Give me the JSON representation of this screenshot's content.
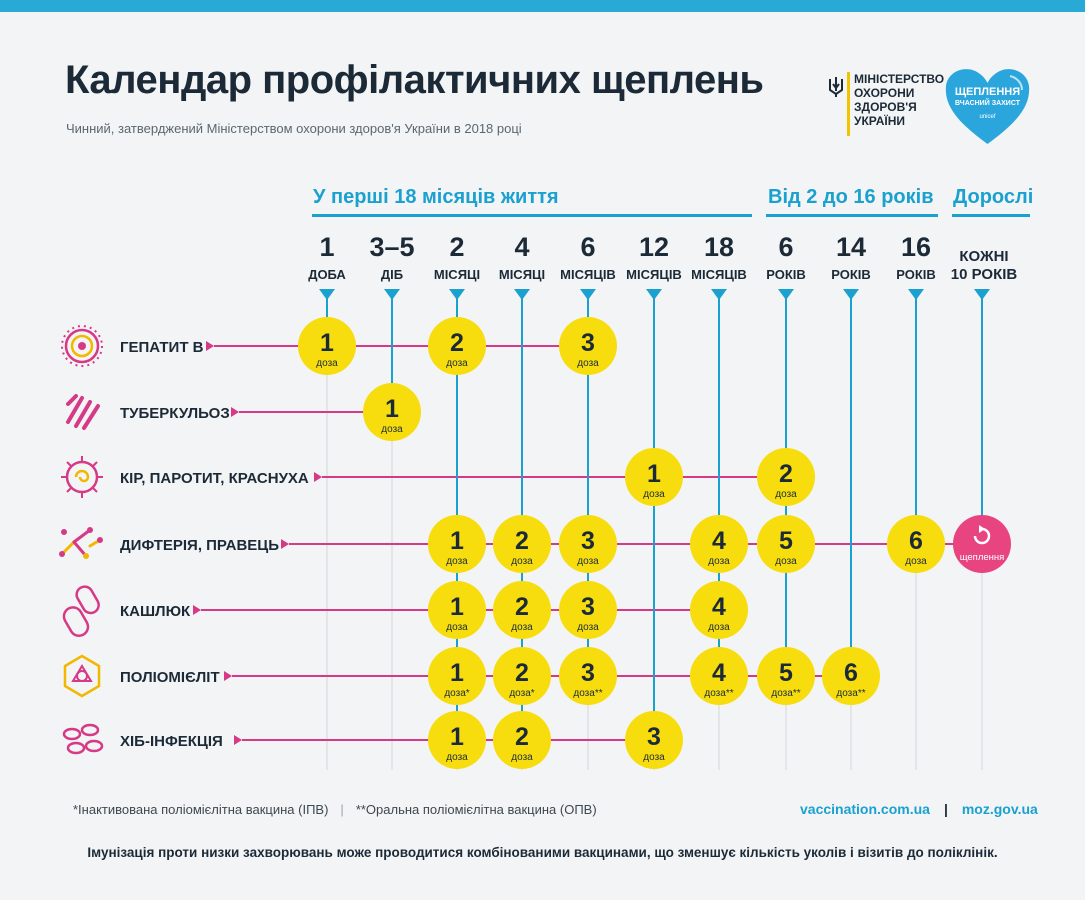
{
  "title": "Календар профілактичних щеплень",
  "subtitle": "Чинний, затверджений Міністерством охорони здоров'я України в 2018 році",
  "ministry": {
    "lines": [
      "МІНІСТЕРСТВО",
      "ОХОРОНИ",
      "ЗДОРОВ'Я",
      "УКРАЇНИ"
    ]
  },
  "campaign": {
    "line1": "ЩЕПЛЕННЯ",
    "line2": "ВЧАСНИЙ ЗАХИСТ",
    "line3": "unicef"
  },
  "groups": [
    {
      "label": "У перші 18 місяців життя"
    },
    {
      "label": "Від 2 до 16 років"
    },
    {
      "label": "Дорослі"
    }
  ],
  "columns": [
    {
      "num": "1",
      "unit": "ДОБА"
    },
    {
      "num": "3–5",
      "unit": "ДІБ"
    },
    {
      "num": "2",
      "unit": "МІСЯЦІ"
    },
    {
      "num": "4",
      "unit": "МІСЯЦІ"
    },
    {
      "num": "6",
      "unit": "МІСЯЦІВ"
    },
    {
      "num": "12",
      "unit": "МІСЯЦІВ"
    },
    {
      "num": "18",
      "unit": "МІСЯЦІВ"
    },
    {
      "num": "6",
      "unit": "РОКІВ"
    },
    {
      "num": "14",
      "unit": "РОКІВ"
    },
    {
      "num": "16",
      "unit": "РОКІВ"
    },
    {
      "num": "",
      "unit": "",
      "line1": "КОЖНІ",
      "line2": "10 РОКІВ"
    }
  ],
  "dose_word": "доза",
  "every_word": "щеплення",
  "colors": {
    "accent": "#1aa1cf",
    "dose": "#f7dd0d",
    "row_line": "#d63a86",
    "every": "#e8447f"
  },
  "rows": [
    {
      "name": "ГЕПАТИТ В",
      "icon": "hepatitis-b-virus-icon",
      "doses": [
        {
          "col": 0,
          "n": "1",
          "mark": ""
        },
        {
          "col": 2,
          "n": "2",
          "mark": ""
        },
        {
          "col": 4,
          "n": "3",
          "mark": ""
        }
      ]
    },
    {
      "name": "ТУБЕРКУЛЬОЗ",
      "icon": "tuberculosis-bacteria-icon",
      "doses": [
        {
          "col": 1,
          "n": "1",
          "mark": ""
        }
      ]
    },
    {
      "name": "КІР, ПАРОТИТ, КРАСНУХА",
      "icon": "measles-virus-icon",
      "doses": [
        {
          "col": 5,
          "n": "1",
          "mark": ""
        },
        {
          "col": 7,
          "n": "2",
          "mark": ""
        }
      ]
    },
    {
      "name": "ДИФТЕРІЯ, ПРАВЕЦЬ",
      "icon": "diphtheria-bacteria-icon",
      "doses": [
        {
          "col": 2,
          "n": "1",
          "mark": ""
        },
        {
          "col": 3,
          "n": "2",
          "mark": ""
        },
        {
          "col": 4,
          "n": "3",
          "mark": ""
        },
        {
          "col": 6,
          "n": "4",
          "mark": ""
        },
        {
          "col": 7,
          "n": "5",
          "mark": ""
        },
        {
          "col": 9,
          "n": "6",
          "mark": ""
        }
      ],
      "every": {
        "col": 10
      }
    },
    {
      "name": "КАШЛЮК",
      "icon": "pertussis-bacteria-icon",
      "doses": [
        {
          "col": 2,
          "n": "1",
          "mark": ""
        },
        {
          "col": 3,
          "n": "2",
          "mark": ""
        },
        {
          "col": 4,
          "n": "3",
          "mark": ""
        },
        {
          "col": 6,
          "n": "4",
          "mark": ""
        }
      ]
    },
    {
      "name": "ПОЛІОМІЄЛІТ",
      "icon": "polio-virus-icon",
      "doses": [
        {
          "col": 2,
          "n": "1",
          "mark": "*"
        },
        {
          "col": 3,
          "n": "2",
          "mark": "*"
        },
        {
          "col": 4,
          "n": "3",
          "mark": "**"
        },
        {
          "col": 6,
          "n": "4",
          "mark": "**"
        },
        {
          "col": 7,
          "n": "5",
          "mark": "**"
        },
        {
          "col": 8,
          "n": "6",
          "mark": "**"
        }
      ]
    },
    {
      "name": "ХІБ-ІНФЕКЦІЯ",
      "icon": "hib-bacteria-icon",
      "doses": [
        {
          "col": 2,
          "n": "1",
          "mark": ""
        },
        {
          "col": 3,
          "n": "2",
          "mark": ""
        },
        {
          "col": 5,
          "n": "3",
          "mark": ""
        }
      ]
    }
  ],
  "footnotes": {
    "ipv": "*Інактивована поліомієлітна вакцина (ІПВ)",
    "divider": "|",
    "opv": "**Оральна поліомієлітна вакцина (ОПВ)"
  },
  "links": {
    "site1": "vaccination.com.ua",
    "divider": "|",
    "site2": "moz.gov.ua"
  },
  "bottom_note": "Імунізація проти низки захворювань може проводитися комбінованими вакцинами, що зменшує кількість уколів і візитів до поліклінік."
}
